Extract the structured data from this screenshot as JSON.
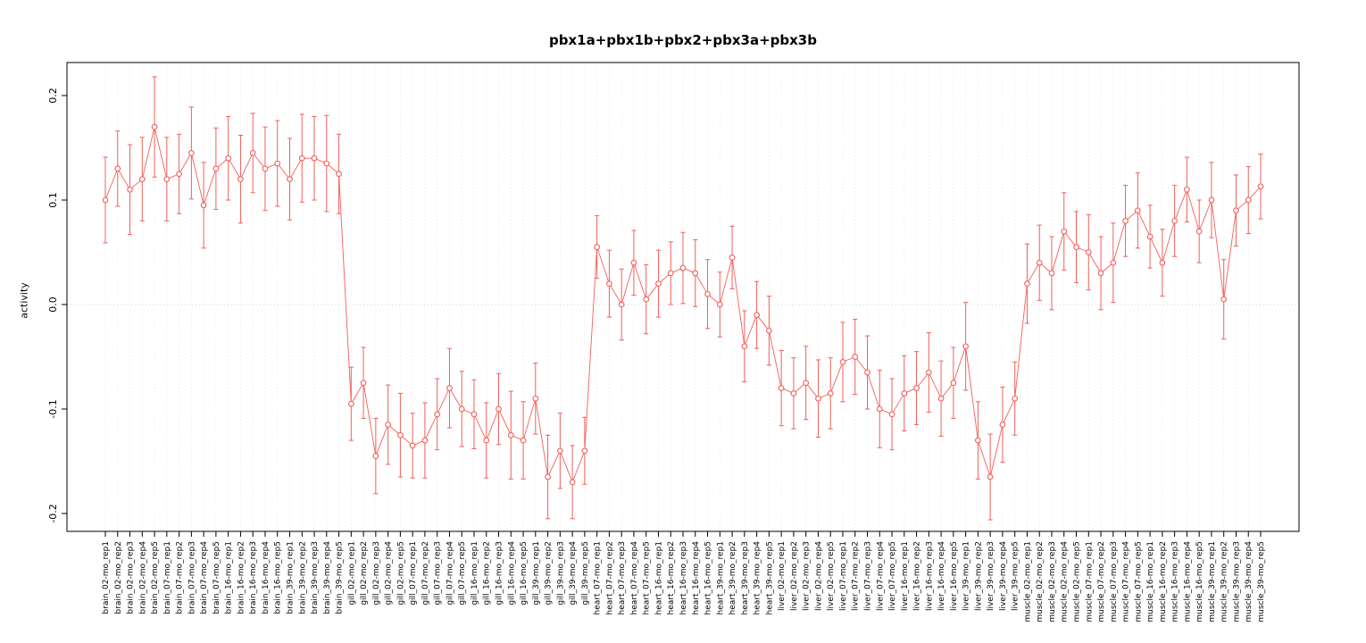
{
  "page": {
    "title": "pbx1a+pbx1b+pbx2+pbx3a+pbx3b"
  },
  "chart_data": {
    "type": "scatter",
    "title": "pbx1a+pbx1b+pbx2+pbx3a+pbx3b",
    "xlabel": "",
    "ylabel": "activity",
    "ylim": [
      -0.22,
      0.22
    ],
    "yticks": [
      -0.2,
      -0.1,
      0.0,
      0.1,
      0.2
    ],
    "ytick_labels": [
      "-0.2",
      "-0.1",
      "0.0",
      "0.1",
      "0.2"
    ],
    "grid": "vertical dotted line at each sample, horizontal dotted line at 0",
    "legend": "none",
    "series_name": "activity",
    "marker": "open-circle",
    "line": true,
    "color": "#f25f5a",
    "grid_color": "#dedede",
    "categories": [
      "brain_02-mo_rep1",
      "brain_02-mo_rep2",
      "brain_02-mo_rep3",
      "brain_02-mo_rep4",
      "brain_02-mo_rep5",
      "brain_07-mo_rep1",
      "brain_07-mo_rep2",
      "brain_07-mo_rep3",
      "brain_07-mo_rep4",
      "brain_07-mo_rep5",
      "brain_16-mo_rep1",
      "brain_16-mo_rep2",
      "brain_16-mo_rep3",
      "brain_16-mo_rep4",
      "brain_16-mo_rep5",
      "brain_39-mo_rep1",
      "brain_39-mo_rep2",
      "brain_39-mo_rep3",
      "brain_39-mo_rep4",
      "brain_39-mo_rep5",
      "gill_02-mo_rep1",
      "gill_02-mo_rep2",
      "gill_02-mo_rep3",
      "gill_02-mo_rep4",
      "gill_02-mo_rep5",
      "gill_07-mo_rep1",
      "gill_07-mo_rep2",
      "gill_07-mo_rep3",
      "gill_07-mo_rep4",
      "gill_07-mo_rep5",
      "gill_16-mo_rep1",
      "gill_16-mo_rep2",
      "gill_16-mo_rep3",
      "gill_16-mo_rep4",
      "gill_16-mo_rep5",
      "gill_39-mo_rep1",
      "gill_39-mo_rep2",
      "gill_39-mo_rep3",
      "gill_39-mo_rep4",
      "gill_39-mo_rep5",
      "heart_07-mo_rep1",
      "heart_07-mo_rep2",
      "heart_07-mo_rep3",
      "heart_07-mo_rep4",
      "heart_07-mo_rep5",
      "heart_16-mo_rep1",
      "heart_16-mo_rep2",
      "heart_16-mo_rep3",
      "heart_16-mo_rep4",
      "heart_16-mo_rep5",
      "heart_39-mo_rep1",
      "heart_39-mo_rep2",
      "heart_39-mo_rep3",
      "heart_39-mo_rep4",
      "heart_39-mo_rep5",
      "liver_02-mo_rep1",
      "liver_02-mo_rep2",
      "liver_02-mo_rep3",
      "liver_02-mo_rep4",
      "liver_02-mo_rep5",
      "liver_07-mo_rep1",
      "liver_07-mo_rep2",
      "liver_07-mo_rep3",
      "liver_07-mo_rep4",
      "liver_07-mo_rep5",
      "liver_16-mo_rep1",
      "liver_16-mo_rep2",
      "liver_16-mo_rep3",
      "liver_16-mo_rep4",
      "liver_16-mo_rep5",
      "liver_39-mo_rep1",
      "liver_39-mo_rep2",
      "liver_39-mo_rep3",
      "liver_39-mo_rep4",
      "liver_39-mo_rep5",
      "muscle_02-mo_rep1",
      "muscle_02-mo_rep2",
      "muscle_02-mo_rep3",
      "muscle_02-mo_rep4",
      "muscle_02-mo_rep5",
      "muscle_07-mo_rep1",
      "muscle_07-mo_rep2",
      "muscle_07-mo_rep3",
      "muscle_07-mo_rep4",
      "muscle_07-mo_rep5",
      "muscle_16-mo_rep1",
      "muscle_16-mo_rep2",
      "muscle_16-mo_rep3",
      "muscle_16-mo_rep4",
      "muscle_16-mo_rep5",
      "muscle_39-mo_rep1",
      "muscle_39-mo_rep2",
      "muscle_39-mo_rep3",
      "muscle_39-mo_rep4",
      "muscle_39-mo_rep5"
    ],
    "values": [
      0.1,
      0.13,
      0.11,
      0.12,
      0.17,
      0.12,
      0.125,
      0.145,
      0.095,
      0.13,
      0.14,
      0.12,
      0.145,
      0.13,
      0.135,
      0.12,
      0.14,
      0.14,
      0.135,
      0.125,
      -0.095,
      -0.075,
      -0.145,
      -0.115,
      -0.125,
      -0.135,
      -0.13,
      -0.105,
      -0.08,
      -0.1,
      -0.105,
      -0.13,
      -0.1,
      -0.125,
      -0.13,
      -0.09,
      -0.165,
      -0.14,
      -0.17,
      -0.14,
      0.055,
      0.02,
      0.0,
      0.04,
      0.005,
      0.02,
      0.03,
      0.035,
      0.03,
      0.01,
      0.0,
      0.045,
      -0.04,
      -0.01,
      -0.025,
      -0.08,
      -0.085,
      -0.075,
      -0.09,
      -0.085,
      -0.055,
      -0.05,
      -0.065,
      -0.1,
      -0.105,
      -0.085,
      -0.08,
      -0.065,
      -0.09,
      -0.075,
      -0.04,
      -0.13,
      -0.165,
      -0.115,
      -0.09,
      0.02,
      0.04,
      0.03,
      0.07,
      0.055,
      0.05,
      0.03,
      0.04,
      0.08,
      0.09,
      0.065,
      0.04,
      0.08,
      0.11,
      0.07,
      0.1,
      0.005,
      0.09,
      0.1,
      0.113
    ],
    "errors": [
      0.041,
      0.036,
      0.043,
      0.04,
      0.048,
      0.04,
      0.038,
      0.044,
      0.041,
      0.039,
      0.04,
      0.042,
      0.038,
      0.04,
      0.041,
      0.039,
      0.042,
      0.04,
      0.046,
      0.038,
      0.035,
      0.034,
      0.036,
      0.038,
      0.04,
      0.031,
      0.036,
      0.034,
      0.038,
      0.036,
      0.033,
      0.036,
      0.034,
      0.042,
      0.037,
      0.034,
      0.04,
      0.036,
      0.035,
      0.032,
      0.03,
      0.032,
      0.034,
      0.031,
      0.033,
      0.032,
      0.03,
      0.034,
      0.032,
      0.033,
      0.031,
      0.03,
      0.034,
      0.032,
      0.033,
      0.036,
      0.034,
      0.035,
      0.037,
      0.034,
      0.038,
      0.036,
      0.035,
      0.037,
      0.034,
      0.036,
      0.035,
      0.038,
      0.036,
      0.034,
      0.042,
      0.037,
      0.041,
      0.036,
      0.035,
      0.038,
      0.036,
      0.035,
      0.037,
      0.034,
      0.036,
      0.035,
      0.038,
      0.034,
      0.036,
      0.03,
      0.032,
      0.034,
      0.031,
      0.03,
      0.036,
      0.038,
      0.034,
      0.032,
      0.031
    ]
  }
}
